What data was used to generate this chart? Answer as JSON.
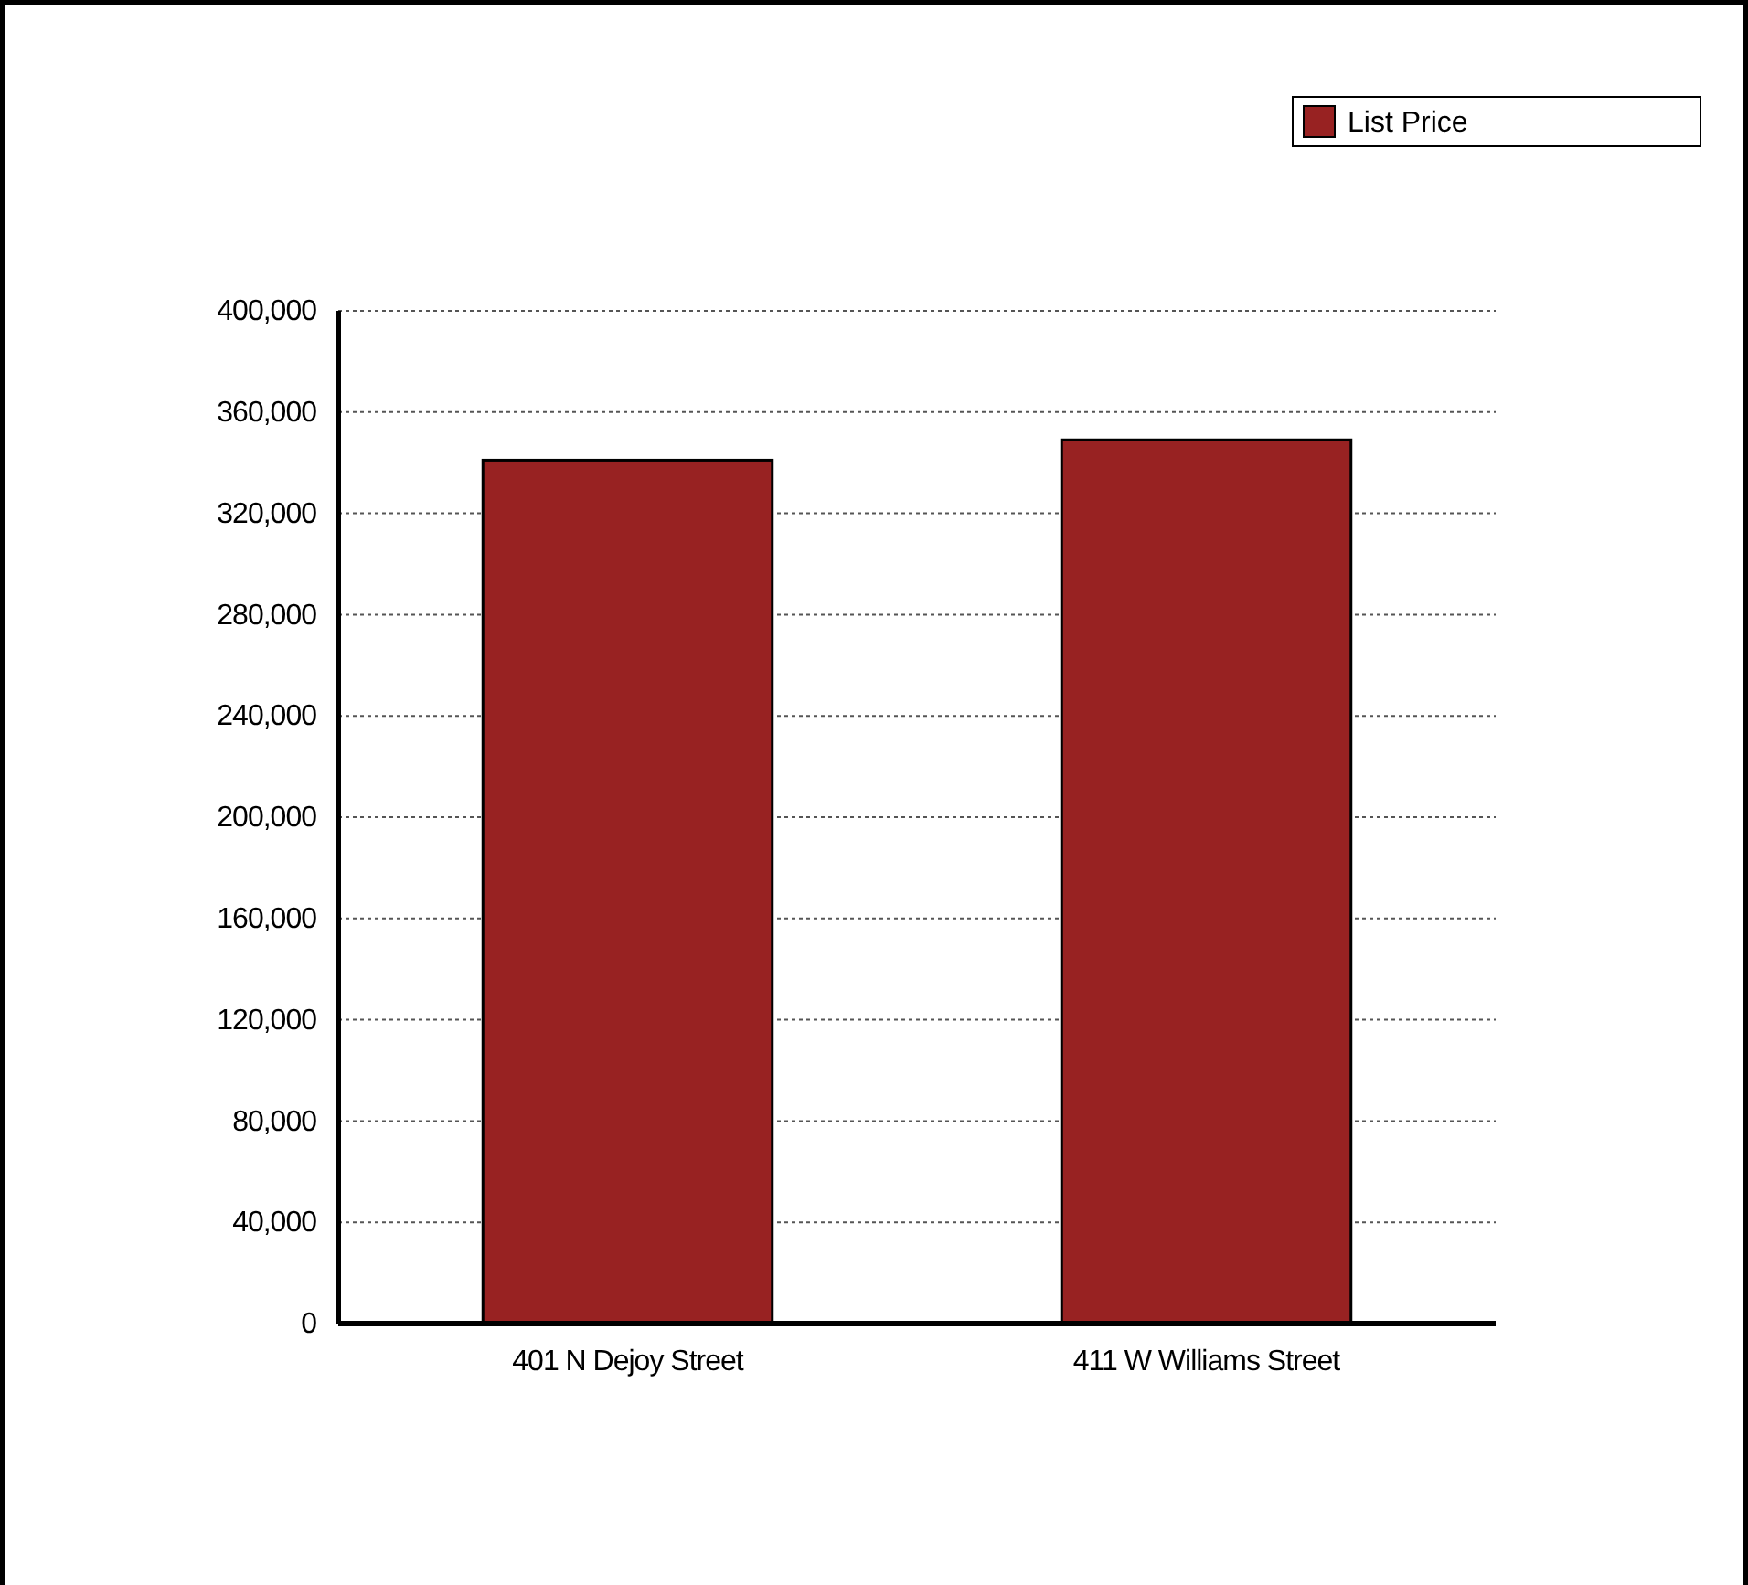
{
  "chart_data": {
    "type": "bar",
    "categories": [
      "401 N Dejoy Street",
      "411 W Williams Street"
    ],
    "series": [
      {
        "name": "List Price",
        "color": "#982222",
        "values": [
          341000,
          349000
        ]
      }
    ],
    "ylim": [
      0,
      400000
    ],
    "yticks": [
      {
        "value": 0,
        "label": "0"
      },
      {
        "value": 40000,
        "label": "40,000"
      },
      {
        "value": 80000,
        "label": "80,000"
      },
      {
        "value": 120000,
        "label": "120,000"
      },
      {
        "value": 160000,
        "label": "160,000"
      },
      {
        "value": 200000,
        "label": "200,000"
      },
      {
        "value": 240000,
        "label": "240,000"
      },
      {
        "value": 280000,
        "label": "280,000"
      },
      {
        "value": 320000,
        "label": "320,000"
      },
      {
        "value": 360000,
        "label": "360,000"
      },
      {
        "value": 400000,
        "label": "400,000"
      }
    ],
    "grid": "y",
    "legend": "top right"
  }
}
